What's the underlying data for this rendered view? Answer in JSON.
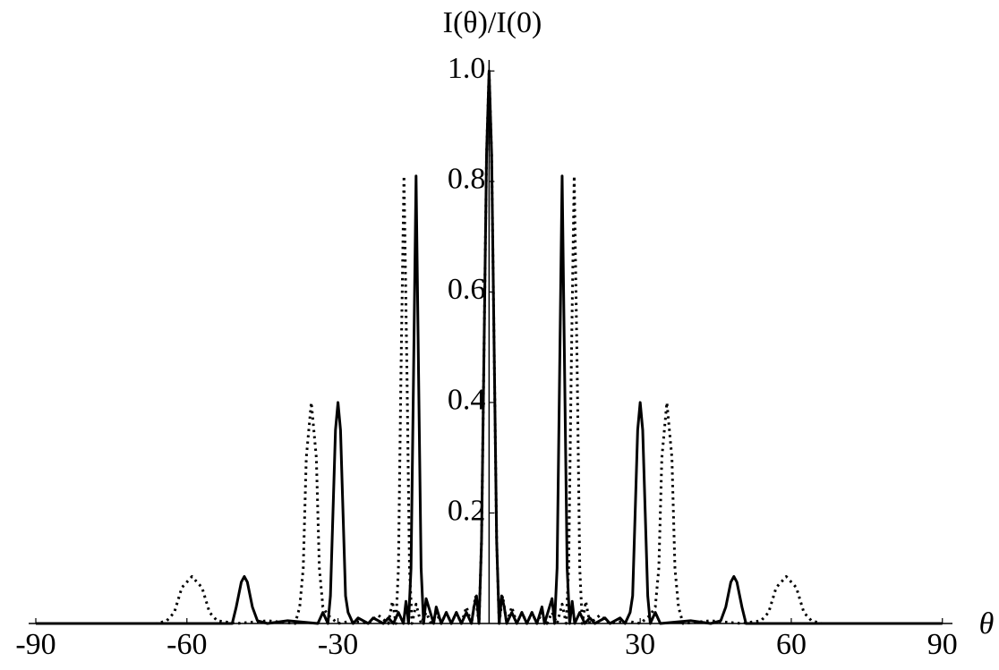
{
  "chart_data": {
    "type": "line",
    "ylabel": "I(θ)/I(0)",
    "xlabel": "θ",
    "xlim": [
      -90,
      92
    ],
    "ylim": [
      0,
      1.02
    ],
    "xticks": [
      -90,
      -60,
      -30,
      30,
      60,
      90
    ],
    "yticks": [
      0.2,
      0.4,
      0.6,
      0.8,
      {
        "value": 1,
        "label": "1.0"
      }
    ],
    "series": [
      {
        "color": "#000000",
        "style": "solid",
        "x": [
          -90,
          -51,
          -50.2,
          -49.2,
          -48.6,
          -48,
          -47,
          -46,
          -44,
          -40,
          -34,
          -33,
          -32,
          -31.5,
          -31,
          -30.5,
          -30,
          -29.5,
          -29,
          -28.5,
          -28,
          -27,
          -26,
          -24,
          -23,
          -21,
          -20,
          -19,
          -18,
          -17,
          -16.5,
          -16,
          -15.5,
          -15,
          -14.5,
          -14,
          -13.5,
          -13,
          -12.5,
          -11,
          -10.5,
          -9.5,
          -8.5,
          -7.5,
          -6.5,
          -5.5,
          -4.5,
          -3.5,
          -3,
          -2.5,
          -2,
          -1.5,
          -1,
          -0.5,
          0,
          0.5,
          1,
          1.5,
          2,
          2.5,
          3,
          3.5,
          4.5,
          5.5,
          6.5,
          7.5,
          8.5,
          9.5,
          10.5,
          11,
          12.5,
          13,
          13.5,
          14,
          14.5,
          15,
          15.5,
          16,
          16.5,
          17,
          18,
          19,
          20,
          21,
          23,
          24,
          26,
          27,
          28,
          28.5,
          29,
          29.5,
          30,
          30.5,
          31,
          31.5,
          32,
          33,
          34,
          40,
          44,
          46,
          47,
          48,
          48.6,
          49.2,
          50.2,
          51,
          90
        ],
        "values": [
          0,
          0,
          0.03,
          0.075,
          0.085,
          0.075,
          0.03,
          0.005,
          0,
          0.005,
          0,
          0.02,
          0,
          0.05,
          0.2,
          0.35,
          0.4,
          0.35,
          0.2,
          0.05,
          0.02,
          0,
          0.01,
          0,
          0.01,
          0,
          0.01,
          0,
          0.02,
          0,
          0.04,
          0,
          0.1,
          0.45,
          0.81,
          0.45,
          0.1,
          0,
          0.045,
          0,
          0.03,
          0,
          0.02,
          0,
          0.02,
          0,
          0.02,
          0,
          0.03,
          0.05,
          0,
          0.15,
          0.5,
          0.85,
          1,
          0.85,
          0.5,
          0.15,
          0,
          0.05,
          0.03,
          0,
          0.02,
          0,
          0.02,
          0,
          0.02,
          0,
          0.03,
          0,
          0.045,
          0,
          0.1,
          0.45,
          0.81,
          0.45,
          0.1,
          0,
          0.04,
          0,
          0.02,
          0,
          0.01,
          0,
          0.01,
          0,
          0.01,
          0,
          0.02,
          0.05,
          0.2,
          0.35,
          0.4,
          0.35,
          0.2,
          0.05,
          0,
          0.02,
          0,
          0.005,
          0,
          0.005,
          0.03,
          0.075,
          0.085,
          0.075,
          0.03,
          0,
          0
        ]
      },
      {
        "color": "#000000",
        "style": "dotted",
        "x": [
          -90,
          -66,
          -64,
          -62.5,
          -61,
          -59,
          -57,
          -55.5,
          -54,
          -50,
          -44,
          -38.5,
          -37.6,
          -36.9,
          -36.3,
          -35.3,
          -34.3,
          -33.7,
          -33,
          -32,
          -30,
          -27,
          -24,
          -22,
          -20,
          -19.2,
          -18.5,
          -18,
          -17.5,
          -16.9,
          -16.3,
          -15.8,
          -15.3,
          -14.5,
          -13.5,
          -12.5,
          -11.5,
          -10.5,
          -9.5,
          -8.5,
          -7.5,
          -6.5,
          -5.5,
          -4.5,
          -3.5,
          -2.7,
          -2,
          -1.5,
          -1,
          -0.5,
          0,
          0.5,
          1,
          1.5,
          2,
          2.7,
          3.5,
          4.5,
          5.5,
          6.5,
          7.5,
          8.5,
          9.5,
          10.5,
          11.5,
          12.5,
          13.5,
          14.5,
          15.3,
          15.8,
          16.3,
          16.9,
          17.5,
          18,
          18.5,
          19.2,
          20,
          22,
          24,
          27,
          30,
          32,
          33,
          33.7,
          34.3,
          35.3,
          36.3,
          36.9,
          37.6,
          38.5,
          44,
          50,
          54,
          55.5,
          57,
          59,
          61,
          62.5,
          64,
          66,
          90
        ],
        "values": [
          0,
          0,
          0.005,
          0.02,
          0.065,
          0.085,
          0.065,
          0.02,
          0.005,
          0,
          0.005,
          0,
          0.03,
          0.1,
          0.3,
          0.4,
          0.3,
          0.1,
          0.03,
          0.015,
          0,
          0.005,
          0,
          0.015,
          0,
          0.04,
          0,
          0.1,
          0.45,
          0.81,
          0.45,
          0.1,
          0,
          0.035,
          0,
          0.02,
          0,
          0.02,
          0,
          0.02,
          0,
          0.02,
          0,
          0.03,
          0,
          0.05,
          0,
          0.15,
          0.5,
          0.85,
          1,
          0.85,
          0.5,
          0.15,
          0,
          0.05,
          0,
          0.03,
          0,
          0.02,
          0,
          0.02,
          0,
          0.02,
          0,
          0.02,
          0,
          0.035,
          0,
          0.1,
          0.45,
          0.81,
          0.45,
          0.1,
          0,
          0.04,
          0,
          0.015,
          0,
          0.005,
          0,
          0.015,
          0.03,
          0.1,
          0.3,
          0.4,
          0.3,
          0.1,
          0.03,
          0,
          0.005,
          0,
          0.005,
          0.02,
          0.065,
          0.085,
          0.065,
          0.02,
          0.005,
          0,
          0
        ]
      }
    ]
  }
}
